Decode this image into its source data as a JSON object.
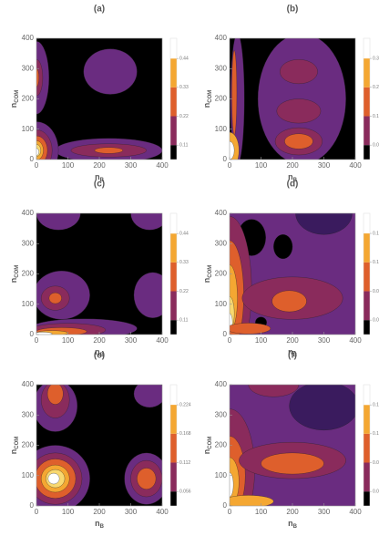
{
  "chart_data": [
    {
      "type": "contour",
      "title": "(a)",
      "xlabel": {
        "base": "n",
        "sub": "B"
      },
      "ylabel": {
        "base": "n",
        "sub": "COM"
      },
      "xlim": [
        0,
        400
      ],
      "ylim": [
        0,
        400
      ],
      "xticks": [
        0,
        100,
        200,
        300,
        400
      ],
      "yticks": [
        0,
        100,
        200,
        300,
        400
      ],
      "clim": [
        0.055,
        0.517
      ],
      "cticks": [
        0.11,
        0.22,
        0.33,
        0.44
      ],
      "colors": [
        "#000000",
        "#8a2b5c",
        "#de5f2c",
        "#f4a732",
        "#ffffff"
      ]
    },
    {
      "type": "contour",
      "title": "(b)",
      "xlabel": {
        "base": "n",
        "sub": "B"
      },
      "ylabel": {
        "base": "n",
        "sub": "COM"
      },
      "xlim": [
        0,
        400
      ],
      "ylim": [
        0,
        400
      ],
      "xticks": [
        0,
        100,
        200,
        300,
        400
      ],
      "yticks": [
        0,
        100,
        200,
        300,
        400
      ],
      "clim": [
        0.038,
        0.357
      ],
      "cticks": [
        0.076,
        0.152,
        0.228,
        0.304
      ],
      "colors": [
        "#000000",
        "#8a2b5c",
        "#de5f2c",
        "#f4a732",
        "#ffffff"
      ]
    },
    {
      "type": "contour",
      "title": "(c)",
      "xlabel": {
        "base": "n",
        "sub": "B"
      },
      "ylabel": {
        "base": "n",
        "sub": "COM"
      },
      "xlim": [
        0,
        400
      ],
      "ylim": [
        0,
        400
      ],
      "xticks": [
        0,
        100,
        200,
        300,
        400
      ],
      "yticks": [
        0,
        100,
        200,
        300,
        400
      ],
      "clim": [
        0.055,
        0.517
      ],
      "cticks": [
        0.11,
        0.22,
        0.33,
        0.44
      ],
      "colors": [
        "#000000",
        "#8a2b5c",
        "#de5f2c",
        "#f4a732",
        "#ffffff"
      ]
    },
    {
      "type": "contour",
      "title": "(d)",
      "xlabel": {
        "base": "n",
        "sub": "B"
      },
      "ylabel": {
        "base": "n",
        "sub": "COM"
      },
      "xlim": [
        0,
        400
      ],
      "ylim": [
        0,
        400
      ],
      "xticks": [
        0,
        100,
        200,
        300,
        400
      ],
      "yticks": [
        0,
        100,
        200,
        300,
        400
      ],
      "clim": [
        0.023,
        0.216
      ],
      "cticks": [
        0.046,
        0.092,
        0.138,
        0.184
      ],
      "colors": [
        "#000000",
        "#8a2b5c",
        "#de5f2c",
        "#f4a732",
        "#ffffff"
      ]
    },
    {
      "type": "contour",
      "title": "(e)",
      "xlabel": {
        "base": "n",
        "sub": "B"
      },
      "ylabel": {
        "base": "n",
        "sub": "COM"
      },
      "xlim": [
        0,
        400
      ],
      "ylim": [
        0,
        400
      ],
      "xticks": [
        0,
        100,
        200,
        300,
        400
      ],
      "yticks": [
        0,
        100,
        200,
        300,
        400
      ],
      "clim": [
        0.028,
        0.263
      ],
      "cticks": [
        0.056,
        0.112,
        0.168,
        0.224
      ],
      "colors": [
        "#000000",
        "#8a2b5c",
        "#de5f2c",
        "#f4a732",
        "#ffffff"
      ]
    },
    {
      "type": "contour",
      "title": "(f)",
      "xlabel": {
        "base": "n",
        "sub": "B"
      },
      "ylabel": {
        "base": "n",
        "sub": "COM"
      },
      "xlim": [
        0,
        400
      ],
      "ylim": [
        0,
        400
      ],
      "xticks": [
        0,
        100,
        200,
        300,
        400
      ],
      "yticks": [
        0,
        100,
        200,
        300,
        400
      ],
      "clim": [
        0.02,
        0.188
      ],
      "cticks": [
        0.04,
        0.08,
        0.12,
        0.16
      ],
      "colors": [
        "#000000",
        "#8a2b5c",
        "#de5f2c",
        "#f4a732",
        "#ffffff"
      ]
    }
  ]
}
